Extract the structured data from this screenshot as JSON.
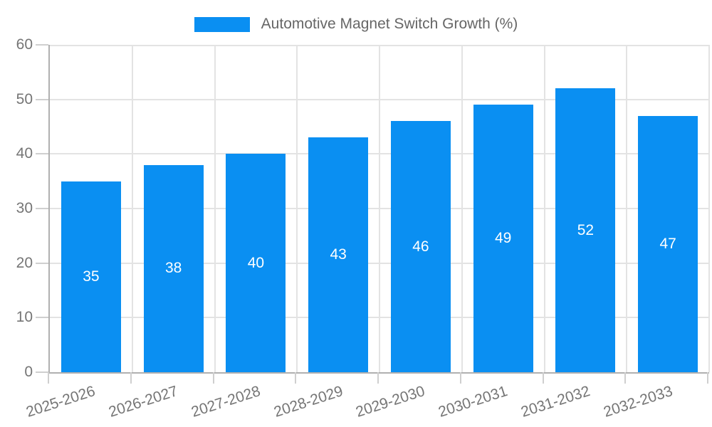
{
  "legend": {
    "label": "Automotive Magnet Switch Growth (%)",
    "swatch_color": "#0a8ff2"
  },
  "colors": {
    "bar": "#0a8ff2",
    "grid": "#e3e3e3",
    "axis": "#b0b0b0",
    "tick": "#cfcfcf",
    "axis_text": "#757575",
    "legend_text": "#666666",
    "value_text": "#ffffff"
  },
  "chart_data": {
    "type": "bar",
    "title": "Automotive Magnet Switch Growth (%)",
    "categories": [
      "2025-2026",
      "2026-2027",
      "2027-2028",
      "2028-2029",
      "2029-2030",
      "2030-2031",
      "2031-2032",
      "2032-2033"
    ],
    "values": [
      35,
      38,
      40,
      43,
      46,
      49,
      52,
      47
    ],
    "xlabel": "",
    "ylabel": "",
    "ylim": [
      0,
      60
    ],
    "yticks": [
      0,
      10,
      20,
      30,
      40,
      50,
      60
    ],
    "grid": "on",
    "legend_position": "top-center",
    "value_labels": "inside-center",
    "x_label_rotation_deg": -18
  }
}
